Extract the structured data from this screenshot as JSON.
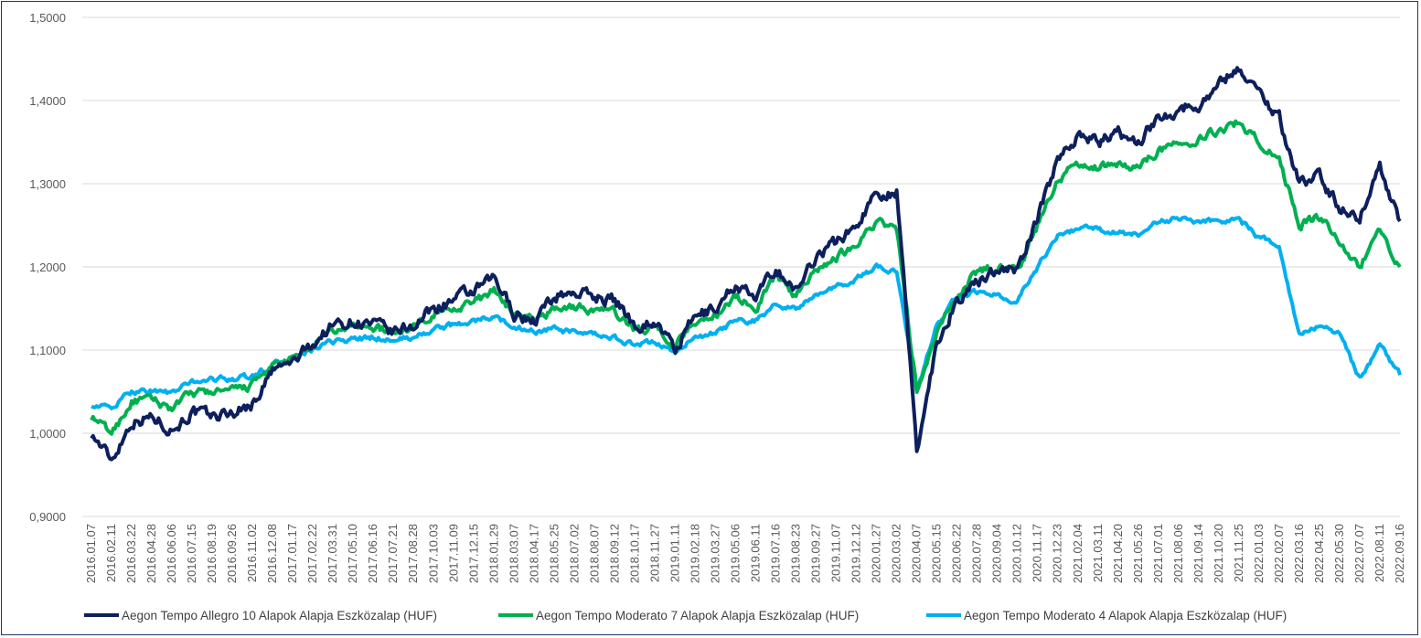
{
  "chart_data": {
    "type": "line",
    "title": "",
    "xlabel": "",
    "ylabel": "",
    "ylim": [
      0.9,
      1.5
    ],
    "yticks": [
      "0,9000",
      "1,0000",
      "1,1000",
      "1,2000",
      "1,3000",
      "1,4000",
      "1,5000"
    ],
    "ytick_values": [
      0.9,
      1.0,
      1.1,
      1.2,
      1.3,
      1.4,
      1.5
    ],
    "grid": true,
    "legend_position": "bottom",
    "x_tick_labels": [
      "2016.01.07",
      "2016.02.11",
      "2016.03.22",
      "2016.04.28",
      "2016.06.06",
      "2016.07.15",
      "2016.08.19",
      "2016.09.26",
      "2016.11.02",
      "2016.12.08",
      "2017.01.17",
      "2017.02.22",
      "2017.03.31",
      "2017.05.10",
      "2017.06.16",
      "2017.07.21",
      "2017.08.28",
      "2017.10.03",
      "2017.11.09",
      "2017.12.15",
      "2018.01.29",
      "2018.03.07",
      "2018.04.17",
      "2018.05.25",
      "2018.07.02",
      "2018.08.07",
      "2018.09.12",
      "2018.10.17",
      "2018.11.27",
      "2019.01.11",
      "2019.02.18",
      "2019.03.27",
      "2019.05.06",
      "2019.06.11",
      "2019.07.16",
      "2019.08.23",
      "2019.09.27",
      "2019.11.07",
      "2019.12.12",
      "2020.01.27",
      "2020.03.02",
      "2020.04.07",
      "2020.05.15",
      "2020.06.22",
      "2020.07.28",
      "2020.09.04",
      "2020.10.12",
      "2020.11.17",
      "2020.12.23",
      "2021.02.04",
      "2021.03.11",
      "2021.04.20",
      "2021.05.26",
      "2021.07.01",
      "2021.08.06",
      "2021.09.14",
      "2021.10.20",
      "2021.11.25",
      "2022.01.03",
      "2022.02.07",
      "2022.03.16",
      "2022.04.25",
      "2022.05.30",
      "2022.07.07",
      "2022.08.11",
      "2022.09.16"
    ],
    "series": [
      {
        "name": "Aegon Tempo Allegro 10 Alapok Alapja Eszközalap (HUF)",
        "color": "#0d1f5c",
        "values": [
          1.0,
          0.968,
          1.015,
          1.02,
          1.005,
          1.025,
          1.02,
          1.025,
          1.035,
          1.075,
          1.085,
          1.108,
          1.13,
          1.135,
          1.13,
          1.12,
          1.13,
          1.15,
          1.16,
          1.17,
          1.185,
          1.145,
          1.135,
          1.165,
          1.17,
          1.165,
          1.16,
          1.13,
          1.135,
          1.1,
          1.14,
          1.15,
          1.18,
          1.16,
          1.2,
          1.17,
          1.215,
          1.23,
          1.25,
          1.29,
          1.29,
          0.98,
          1.11,
          1.16,
          1.18,
          1.2,
          1.195,
          1.26,
          1.33,
          1.36,
          1.35,
          1.36,
          1.35,
          1.38,
          1.39,
          1.395,
          1.42,
          1.44,
          1.41,
          1.38,
          1.3,
          1.31,
          1.27,
          1.26,
          1.32,
          1.255
        ]
      },
      {
        "name": "Aegon Tempo Moderato 7 Alapok Alapja Eszközalap (HUF)",
        "color": "#00b050",
        "values": [
          1.02,
          1.0,
          1.038,
          1.04,
          1.03,
          1.048,
          1.05,
          1.05,
          1.058,
          1.08,
          1.088,
          1.105,
          1.122,
          1.128,
          1.128,
          1.12,
          1.13,
          1.145,
          1.152,
          1.158,
          1.17,
          1.145,
          1.135,
          1.15,
          1.152,
          1.148,
          1.145,
          1.125,
          1.128,
          1.105,
          1.135,
          1.142,
          1.165,
          1.15,
          1.19,
          1.165,
          1.2,
          1.21,
          1.23,
          1.255,
          1.245,
          1.05,
          1.12,
          1.165,
          1.195,
          1.2,
          1.195,
          1.25,
          1.305,
          1.325,
          1.32,
          1.325,
          1.32,
          1.34,
          1.348,
          1.355,
          1.365,
          1.375,
          1.35,
          1.33,
          1.25,
          1.26,
          1.23,
          1.2,
          1.245,
          1.2
        ]
      },
      {
        "name": "Aegon Tempo Moderato 4 Alapok Alapja Eszközalap (HUF)",
        "color": "#00b0f0",
        "values": [
          1.035,
          1.03,
          1.05,
          1.052,
          1.048,
          1.062,
          1.065,
          1.066,
          1.068,
          1.082,
          1.088,
          1.1,
          1.11,
          1.113,
          1.115,
          1.112,
          1.115,
          1.125,
          1.13,
          1.135,
          1.14,
          1.128,
          1.122,
          1.125,
          1.12,
          1.118,
          1.115,
          1.105,
          1.11,
          1.098,
          1.115,
          1.12,
          1.135,
          1.135,
          1.155,
          1.15,
          1.165,
          1.175,
          1.185,
          1.2,
          1.195,
          1.05,
          1.13,
          1.165,
          1.17,
          1.165,
          1.16,
          1.2,
          1.24,
          1.245,
          1.245,
          1.24,
          1.24,
          1.255,
          1.258,
          1.255,
          1.255,
          1.258,
          1.235,
          1.225,
          1.12,
          1.13,
          1.12,
          1.065,
          1.105,
          1.07
        ]
      }
    ]
  }
}
